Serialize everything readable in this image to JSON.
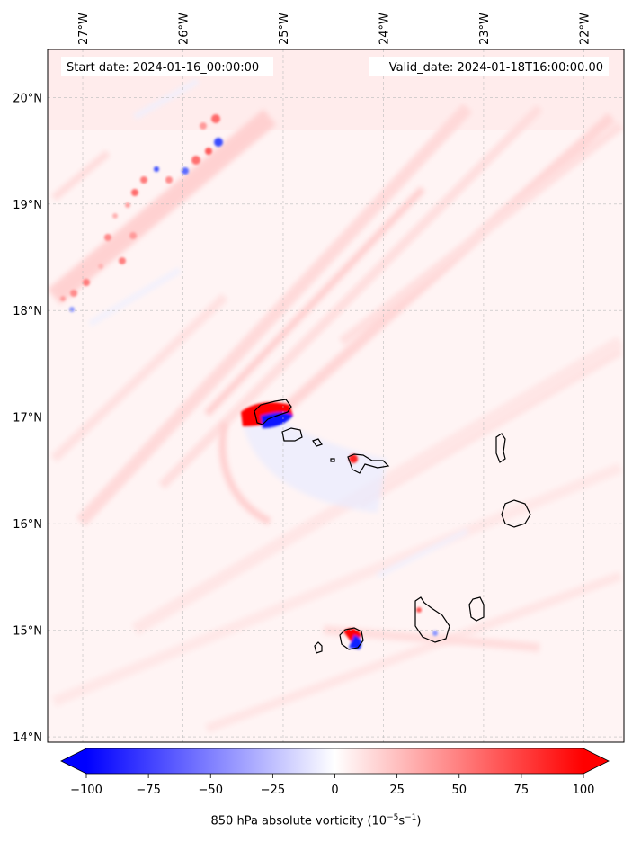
{
  "map": {
    "start_date": "Start date: 2024-01-16_00:00:00",
    "valid_date": "Valid_date: 2024-01-18T16:00:00.00",
    "lon_ticks": [
      {
        "lon": -27,
        "label": "27°W"
      },
      {
        "lon": -26,
        "label": "26°W"
      },
      {
        "lon": -25,
        "label": "25°W"
      },
      {
        "lon": -24,
        "label": "24°W"
      },
      {
        "lon": -23,
        "label": "23°W"
      },
      {
        "lon": -22,
        "label": "22°W"
      }
    ],
    "lat_ticks": [
      {
        "lat": 20,
        "label": "20°N"
      },
      {
        "lat": 19,
        "label": "19°N"
      },
      {
        "lat": 18,
        "label": "18°N"
      },
      {
        "lat": 17,
        "label": "17°N"
      },
      {
        "lat": 16,
        "label": "16°N"
      },
      {
        "lat": 15,
        "label": "15°N"
      },
      {
        "lat": 14,
        "label": "14°N"
      }
    ],
    "lon_range": [
      -27.35,
      -21.6
    ],
    "lat_range": [
      13.95,
      20.45
    ],
    "gridlines": true,
    "islands": [
      "Santo Antão",
      "São Vicente",
      "Santa Luzia",
      "São Nicolau",
      "Sal",
      "Boa Vista",
      "Maio",
      "Santiago",
      "Fogo",
      "Brava"
    ]
  },
  "colorbar": {
    "ticks": [
      "−100",
      "−75",
      "−50",
      "−25",
      "0",
      "25",
      "50",
      "75",
      "100"
    ],
    "tick_values": [
      -100,
      -75,
      -50,
      -25,
      0,
      25,
      50,
      75,
      100
    ],
    "range": [
      -100,
      100
    ],
    "extend": "both",
    "label_main": "850 hPa absolute vorticity (10",
    "label_exp1": "−5",
    "label_mid": "s",
    "label_exp2": "−1",
    "label_end": ")",
    "cmap": "bwr",
    "low_color": "#0000ff",
    "mid_color": "#ffffff",
    "high_color": "#ff0000"
  }
}
